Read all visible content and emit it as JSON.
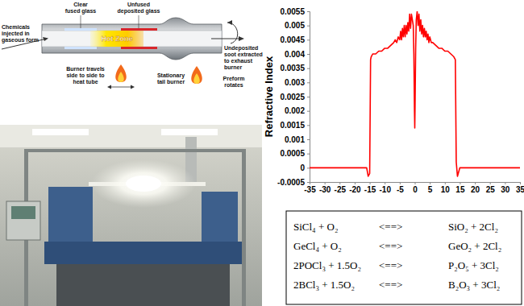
{
  "diagram": {
    "clear_fused_glass": [
      "Clear",
      "fused glass"
    ],
    "unfused_deposited_glass": [
      "Unfused",
      "deposited glass"
    ],
    "chemicals_injected": [
      "Chemicals",
      "injected in",
      "gaseous form"
    ],
    "hot_zone": [
      "Hot Zone"
    ],
    "undeposited_soot": [
      "Undeposited",
      "soot extracted",
      "to exhaust",
      "burner"
    ],
    "burner_travels": [
      "Burner travels",
      "side to side to",
      "heat tube"
    ],
    "stationary_tail_burner": [
      "Stationary",
      "tail burner"
    ],
    "preform_rotates": [
      "Preform",
      "rotates"
    ]
  },
  "chart_data": {
    "type": "line",
    "y_label": "Refractive Index",
    "color": "#ff0000",
    "x": [
      -35,
      -20,
      -16,
      -15.5,
      -15,
      -14.7,
      -14.5,
      -14,
      -13,
      -12,
      -11,
      -10,
      -9,
      -8,
      -7,
      -6.5,
      -6,
      -5.5,
      -5,
      -4.7,
      -4.4,
      -4.1,
      -3.8,
      -3.5,
      -3.2,
      -2.9,
      -2.6,
      -2.3,
      -2,
      -1.7,
      -1.4,
      -1.1,
      -0.8,
      -0.5,
      -0.3,
      -0.1,
      0,
      0.1,
      0.3,
      0.5,
      0.8,
      1.1,
      1.4,
      1.7,
      2,
      2.3,
      2.6,
      2.9,
      3.2,
      3.5,
      3.8,
      4.1,
      4.4,
      4.7,
      5,
      5.5,
      6,
      7,
      8,
      9,
      10,
      11,
      12,
      13,
      13.5,
      13.8,
      14.2,
      15,
      20,
      35
    ],
    "values": [
      0,
      0,
      0,
      -0.0003,
      -0.0002,
      0.0038,
      0.0039,
      0.004,
      0.004,
      0.0041,
      0.0041,
      0.0042,
      0.0042,
      0.0043,
      0.0044,
      0.0045,
      0.0044,
      0.0046,
      0.0045,
      0.0048,
      0.0045,
      0.0049,
      0.0046,
      0.005,
      0.0046,
      0.005,
      0.0047,
      0.0051,
      0.0048,
      0.0054,
      0.0049,
      0.0054,
      0.0052,
      0.005,
      0.004,
      0.002,
      0.0014,
      0.0022,
      0.0042,
      0.0052,
      0.0055,
      0.005,
      0.0054,
      0.0048,
      0.0052,
      0.0047,
      0.005,
      0.0046,
      0.0049,
      0.0046,
      0.0048,
      0.0045,
      0.0047,
      0.0044,
      0.0046,
      0.0044,
      0.0044,
      0.0043,
      0.0042,
      0.0042,
      0.0041,
      0.0041,
      0.004,
      0.0039,
      0.0038,
      0.0002,
      -0.0003,
      0,
      0,
      0
    ],
    "xlim": [
      -35,
      35
    ],
    "ylim": [
      -0.0005,
      0.0055
    ],
    "xticks": [
      -35,
      -30,
      -25,
      -20,
      -15,
      -10,
      -5,
      0,
      5,
      10,
      15,
      20,
      25,
      30,
      35
    ],
    "yticks": [
      -0.0005,
      0,
      0.0005,
      0.001,
      0.0015,
      0.002,
      0.0025,
      0.003,
      0.0035,
      0.004,
      0.0045,
      0.005,
      0.0055
    ]
  },
  "table": {
    "rows": [
      [
        "SiCl₄ + O₂",
        "<==>",
        "SiO₂ + 2Cl₂"
      ],
      [
        "GeCl₄ + O₂",
        "<==>",
        "GeO₂ + 2Cl₂"
      ],
      [
        "2POCl₃ + 1.5O₂",
        "<==>",
        "P₂O₅ + 3Cl₂"
      ],
      [
        "2BCl₃ + 1.5O₂",
        "<==>",
        "B₂O₃ + 3Cl₂"
      ]
    ]
  }
}
